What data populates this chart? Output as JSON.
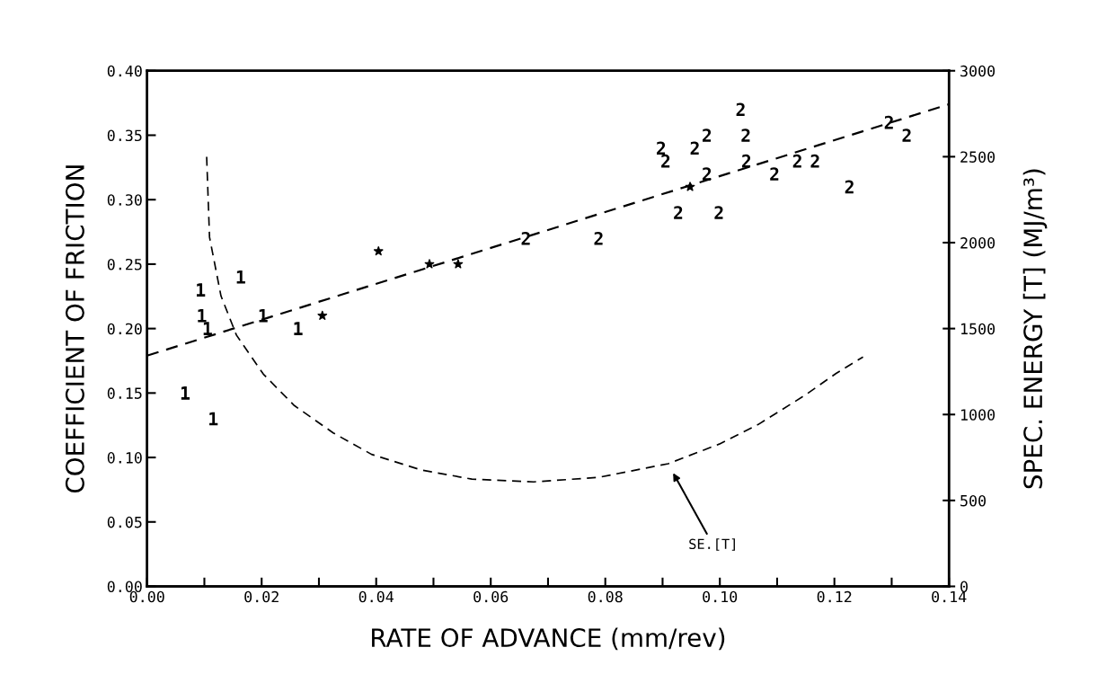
{
  "chart_data": {
    "type": "scatter",
    "xlabel": "RATE OF ADVANCE (mm/rev)",
    "ylabel": "COEFFICIENT OF FRICTION",
    "y2label": "SPEC. ENERGY [T] (MJ/m³)",
    "xlim": [
      0,
      0.14
    ],
    "ylim": [
      0,
      0.4
    ],
    "y2lim": [
      0,
      3000
    ],
    "xticks": [
      {
        "value": 0,
        "label": "0.00"
      },
      {
        "value": 0.01,
        "label": null
      },
      0.02,
      {
        "value": 0.03,
        "label": null
      },
      0.04,
      {
        "value": 0.05,
        "label": null
      },
      0.06,
      {
        "value": 0.07,
        "label": null
      },
      0.08,
      {
        "value": 0.09,
        "label": null
      },
      {
        "value": 0.1,
        "label": "0.10"
      },
      {
        "value": 0.11,
        "label": null
      },
      0.12,
      {
        "value": 0.13,
        "label": null
      },
      0.14
    ],
    "yticks": [
      {
        "value": 0,
        "label": "0.00"
      },
      0.05,
      {
        "value": 0.1,
        "label": "0.10"
      },
      0.15,
      {
        "value": 0.2,
        "label": "0.20"
      },
      0.25,
      {
        "value": 0.3,
        "label": "0.30"
      },
      0.35,
      {
        "value": 0.4,
        "label": "0.40"
      }
    ],
    "y2ticks": [
      0,
      500,
      1000,
      1500,
      2000,
      2500,
      3000
    ],
    "grid": false,
    "series": [
      {
        "color": "#000000",
        "x": [
          0.0067,
          0.0094,
          0.0096,
          0.0106,
          0.0116,
          0.0164,
          0.0203,
          0.0264
        ],
        "values": [
          0.15,
          0.23,
          0.21,
          0.2,
          0.13,
          0.24,
          0.21,
          0.2
        ]
      },
      {
        "color": "#000000",
        "x": [
          0.0661,
          0.0788,
          0.0927,
          0.0998,
          0.0897,
          0.0905,
          0.0956,
          0.0977,
          0.0977,
          0.1036,
          0.1045,
          0.1046,
          0.1095,
          0.1135,
          0.1166,
          0.1226,
          0.1295,
          0.1326
        ],
        "values": [
          0.27,
          0.27,
          0.29,
          0.29,
          0.34,
          0.33,
          0.34,
          0.35,
          0.32,
          0.37,
          0.35,
          0.33,
          0.32,
          0.33,
          0.33,
          0.31,
          0.36,
          0.35
        ]
      },
      {
        "marker": "star",
        "color": "#000000",
        "x": [
          0.0306,
          0.0404,
          0.0493,
          0.0543,
          0.0948
        ],
        "values": [
          0.21,
          0.26,
          0.25,
          0.25,
          0.31
        ]
      },
      {
        "type": "line",
        "line_style": "dashed",
        "color": "#000000",
        "x": [
          0,
          0.14
        ],
        "values": [
          0.179,
          0.374
        ]
      },
      {
        "type": "line",
        "axis": "y2",
        "line_style": "dashed",
        "color": "#000000",
        "x": [
          0.0104,
          0.0109,
          0.0129,
          0.0156,
          0.0203,
          0.0257,
          0.0325,
          0.0392,
          0.0479,
          0.0567,
          0.0675,
          0.0788,
          0.091,
          0.0999,
          0.1067,
          0.1149,
          0.1203,
          0.125
        ],
        "values": [
          2499,
          2032,
          1690,
          1462,
          1235,
          1052,
          893,
          768,
          677,
          624,
          608,
          634,
          714,
          828,
          942,
          1113,
          1239,
          1335
        ]
      }
    ],
    "annotations": [
      "SE.[T]"
    ]
  }
}
